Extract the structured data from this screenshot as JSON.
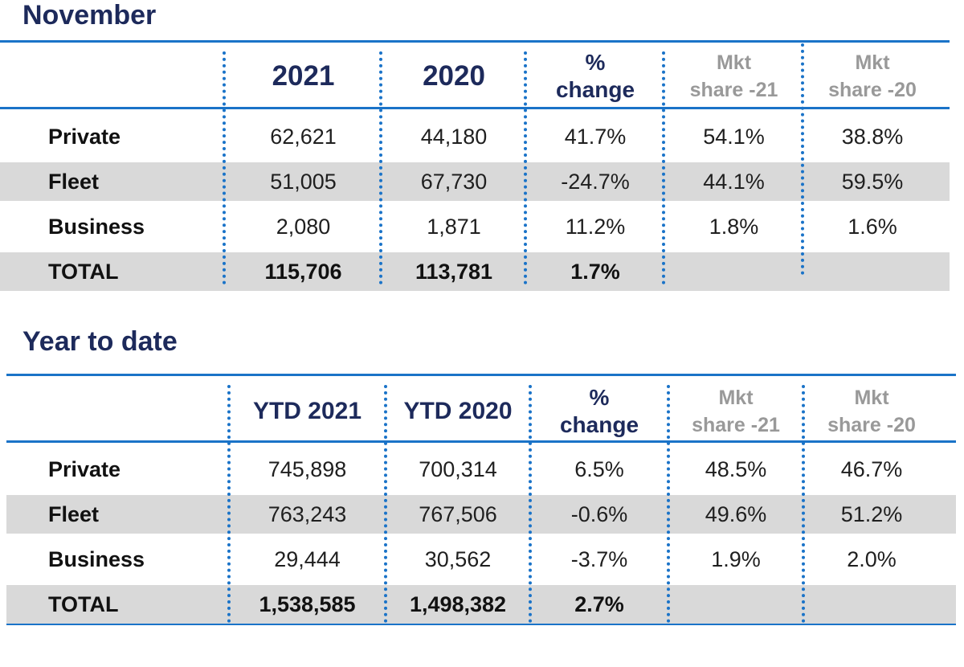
{
  "sections": [
    {
      "title": "November",
      "headers": {
        "col1": "2021",
        "col2": "2020",
        "pct_top": "%",
        "pct_bottom": "change",
        "mkt21_top": "Mkt",
        "mkt21_bottom": "share -21",
        "mkt20_top": "Mkt",
        "mkt20_bottom": "share -20"
      },
      "rows": [
        {
          "label": "Private",
          "v1": "62,621",
          "v2": "44,180",
          "pct": "41.7%",
          "m21": "54.1%",
          "m20": "38.8%"
        },
        {
          "label": "Fleet",
          "v1": "51,005",
          "v2": "67,730",
          "pct": "-24.7%",
          "m21": "44.1%",
          "m20": "59.5%"
        },
        {
          "label": "Business",
          "v1": "2,080",
          "v2": "1,871",
          "pct": "11.2%",
          "m21": "1.8%",
          "m20": "1.6%"
        },
        {
          "label": "TOTAL",
          "v1": "115,706",
          "v2": "113,781",
          "pct": "1.7%",
          "m21": "",
          "m20": ""
        }
      ]
    },
    {
      "title": "Year to date",
      "headers": {
        "col1": "YTD 2021",
        "col2": "YTD 2020",
        "pct_top": "%",
        "pct_bottom": "change",
        "mkt21_top": "Mkt",
        "mkt21_bottom": "share -21",
        "mkt20_top": "Mkt",
        "mkt20_bottom": "share -20"
      },
      "rows": [
        {
          "label": "Private",
          "v1": "745,898",
          "v2": "700,314",
          "pct": "6.5%",
          "m21": "48.5%",
          "m20": "46.7%"
        },
        {
          "label": "Fleet",
          "v1": "763,243",
          "v2": "767,506",
          "pct": "-0.6%",
          "m21": "49.6%",
          "m20": "51.2%"
        },
        {
          "label": "Business",
          "v1": "29,444",
          "v2": "30,562",
          "pct": "-3.7%",
          "m21": "1.9%",
          "m20": "2.0%"
        },
        {
          "label": "TOTAL",
          "v1": "1,538,585",
          "v2": "1,498,382",
          "pct": "2.7%",
          "m21": "",
          "m20": ""
        }
      ]
    }
  ]
}
